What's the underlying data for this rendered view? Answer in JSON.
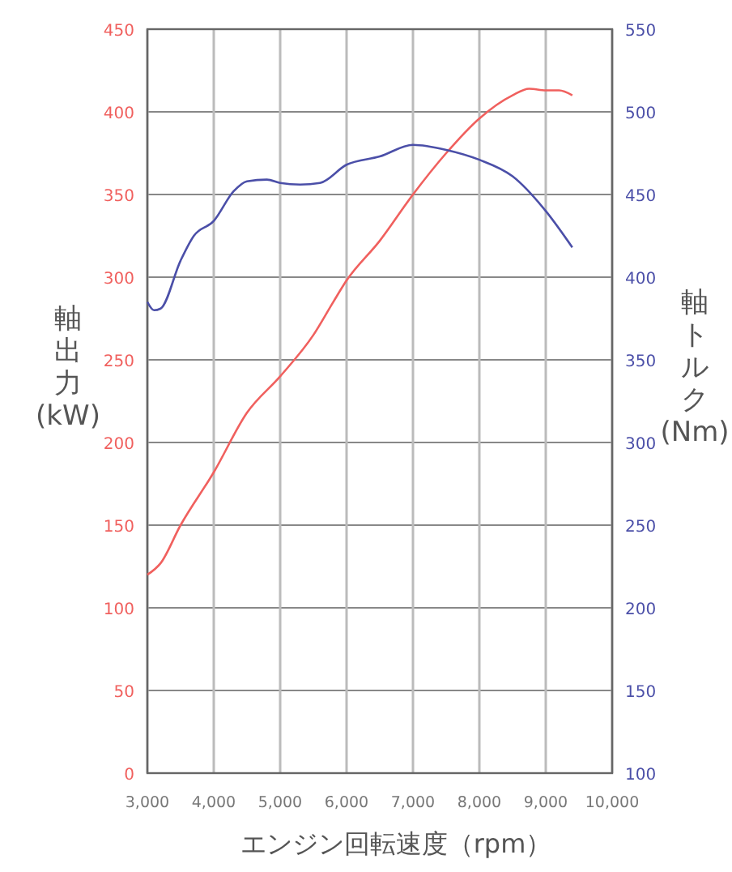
{
  "chart_data": {
    "type": "line",
    "xlabel": "エンジン回転速度（rpm）",
    "ylabel": "軸出力(kW)",
    "y2label": "軸トルク(Nm)",
    "xlim": [
      3000,
      10000
    ],
    "xticks": [
      {
        "value": 3000,
        "label": "3,000"
      },
      {
        "value": 4000,
        "label": "4,000"
      },
      {
        "value": 5000,
        "label": "5,000"
      },
      {
        "value": 6000,
        "label": "6,000"
      },
      {
        "value": 7000,
        "label": "7,000"
      },
      {
        "value": 8000,
        "label": "8,000"
      },
      {
        "value": 9000,
        "label": "9,000"
      },
      {
        "value": 10000,
        "label": "10,000"
      }
    ],
    "ylim": [
      0,
      450
    ],
    "yticks": [
      0,
      50,
      100,
      150,
      200,
      250,
      300,
      350,
      400,
      450
    ],
    "y2lim": [
      100,
      550
    ],
    "y2ticks": [
      100,
      150,
      200,
      250,
      300,
      350,
      400,
      450,
      500,
      550
    ],
    "grid": true,
    "marker": "none",
    "line_style": "solid",
    "series": [
      {
        "color": "#f0605e",
        "x": [
          3000,
          3200,
          3500,
          4000,
          4500,
          5000,
          5500,
          5800,
          6000,
          6500,
          7000,
          7500,
          8000,
          8500,
          8750,
          9000,
          9200,
          9400
        ],
        "values": [
          120,
          127,
          150,
          182,
          218,
          240,
          265,
          285,
          298,
          322,
          350,
          375,
          396,
          410,
          414,
          413,
          413,
          410
        ]
      },
      {
        "color": "#4b4fa8",
        "axis": "y2",
        "x": [
          3000,
          3100,
          3200,
          3500,
          3700,
          4000,
          4300,
          4500,
          4800,
          5000,
          5300,
          5600,
          6000,
          6500,
          7000,
          7500,
          8000,
          8500,
          9000,
          9400
        ],
        "values": [
          385,
          380,
          381,
          410,
          425,
          434,
          452,
          458,
          459,
          457,
          456,
          457,
          468,
          473,
          480,
          477,
          471,
          461,
          440,
          418
        ]
      }
    ]
  }
}
